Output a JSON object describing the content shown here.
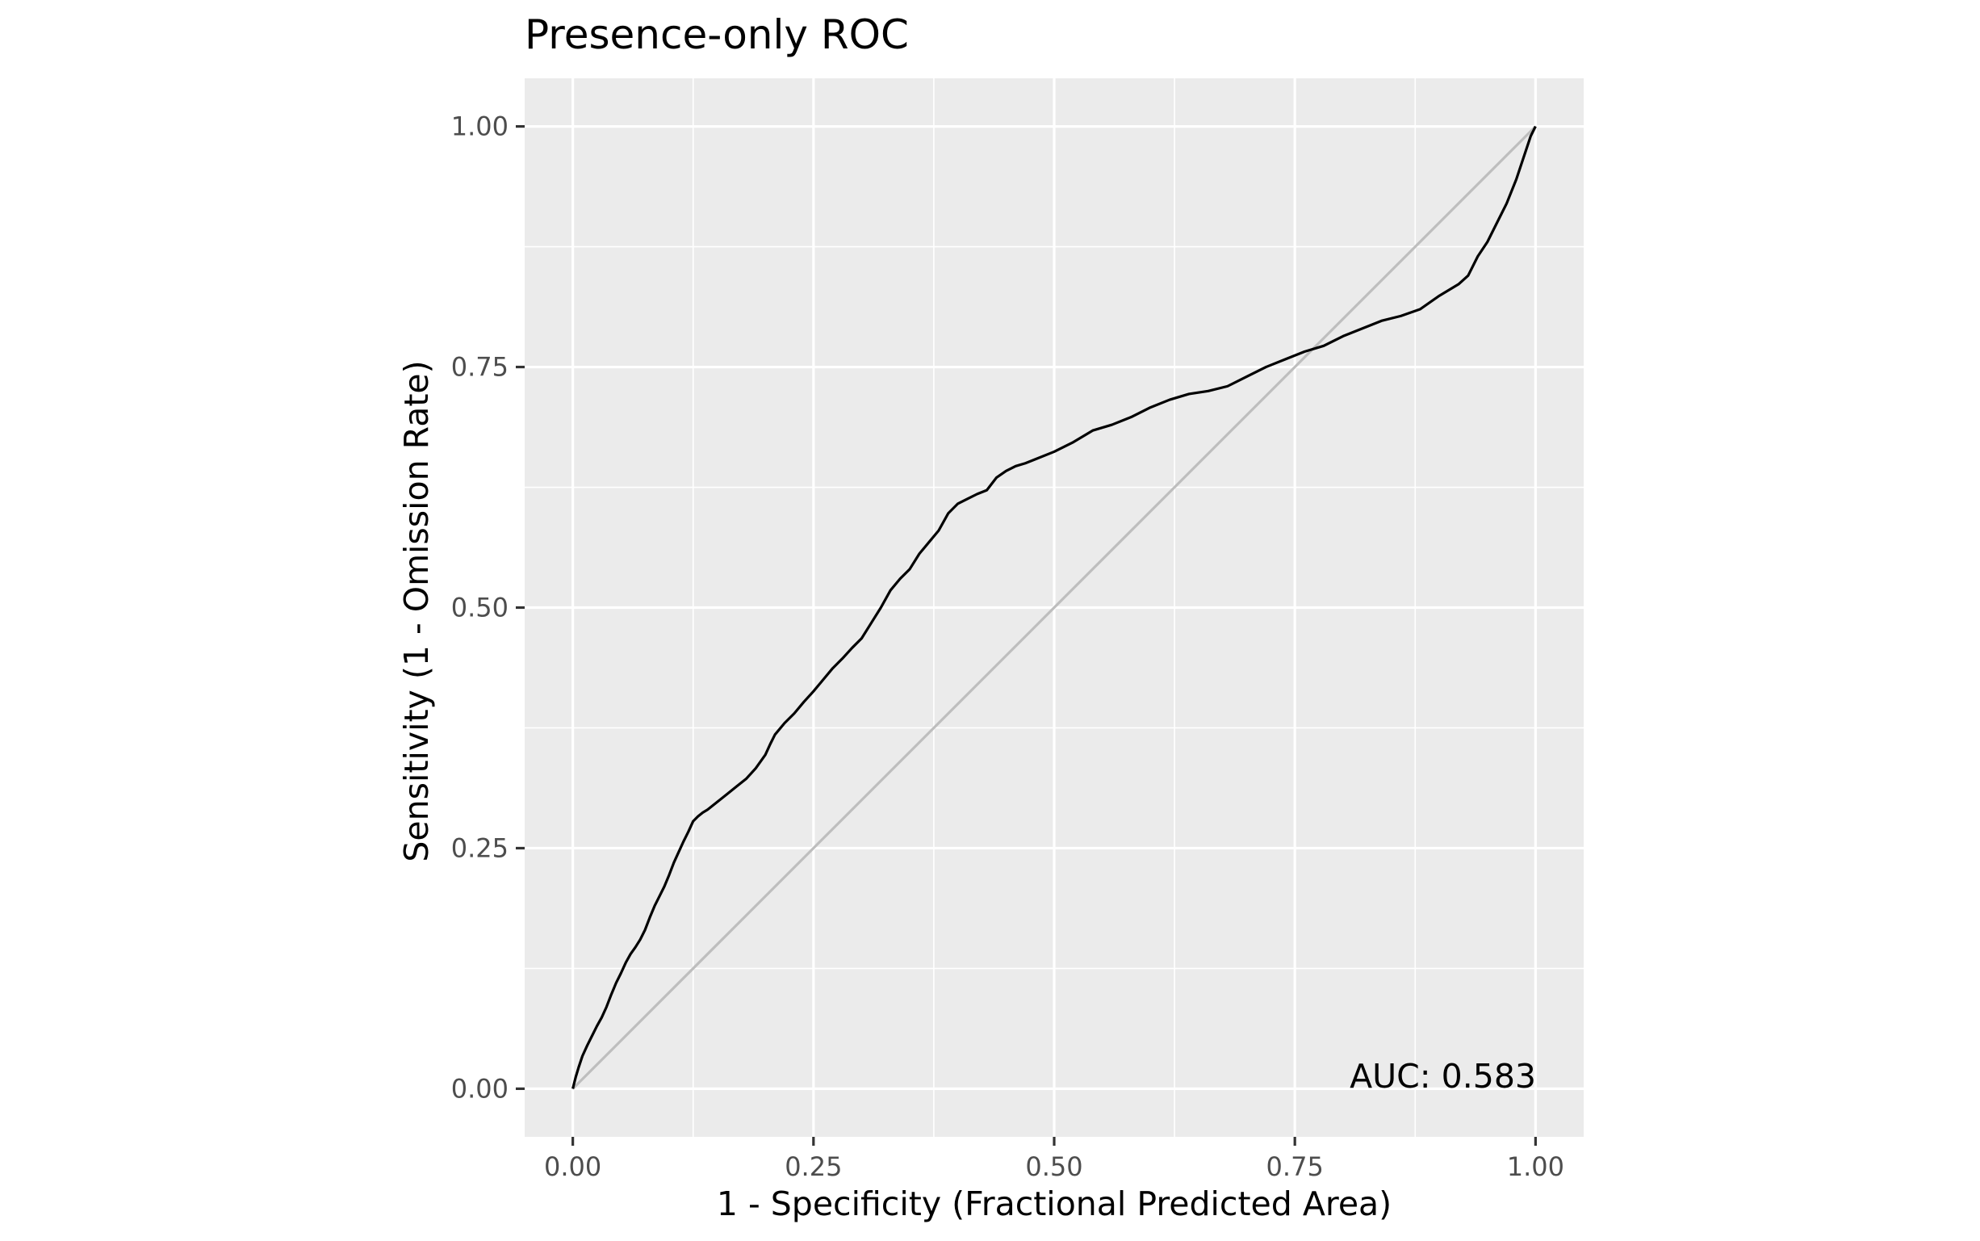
{
  "chart_data": {
    "type": "line",
    "title": "Presence-only ROC",
    "xlabel": "1 - Specificity (Fractional Predicted Area)",
    "ylabel": "Sensitivity (1 - Omission Rate)",
    "xlim": [
      -0.05,
      1.05
    ],
    "ylim": [
      -0.05,
      1.05
    ],
    "x_ticks": [
      0,
      0.25,
      0.5,
      0.75,
      1
    ],
    "x_tick_labels": [
      "0.00",
      "0.25",
      "0.50",
      "0.75",
      "1.00"
    ],
    "y_ticks": [
      0,
      0.25,
      0.5,
      0.75,
      1
    ],
    "y_tick_labels": [
      "0.00",
      "0.25",
      "0.50",
      "0.75",
      "1.00"
    ],
    "grid": true,
    "legend": "none",
    "annotation": "AUC: 0.583",
    "colors": {
      "panel_background": "#ebebeb",
      "grid_line": "#ffffff",
      "roc_curve": "#000000",
      "reference_line": "#bebebe",
      "tick_mark": "#333333"
    },
    "series": [
      {
        "id": "reference",
        "x": [
          0,
          1
        ],
        "y": [
          0,
          1
        ]
      },
      {
        "id": "roc",
        "x": [
          0,
          0.003,
          0.006,
          0.01,
          0.015,
          0.02,
          0.025,
          0.03,
          0.035,
          0.04,
          0.045,
          0.05,
          0.055,
          0.06,
          0.065,
          0.07,
          0.075,
          0.08,
          0.085,
          0.09,
          0.095,
          0.1,
          0.105,
          0.11,
          0.115,
          0.12,
          0.125,
          0.13,
          0.135,
          0.14,
          0.15,
          0.16,
          0.17,
          0.18,
          0.19,
          0.2,
          0.205,
          0.21,
          0.22,
          0.23,
          0.24,
          0.25,
          0.26,
          0.27,
          0.28,
          0.29,
          0.3,
          0.31,
          0.32,
          0.33,
          0.34,
          0.35,
          0.36,
          0.37,
          0.38,
          0.39,
          0.4,
          0.41,
          0.42,
          0.43,
          0.44,
          0.45,
          0.46,
          0.47,
          0.48,
          0.5,
          0.52,
          0.54,
          0.56,
          0.58,
          0.6,
          0.62,
          0.64,
          0.66,
          0.68,
          0.7,
          0.72,
          0.74,
          0.76,
          0.78,
          0.8,
          0.82,
          0.84,
          0.86,
          0.88,
          0.9,
          0.92,
          0.93,
          0.94,
          0.95,
          0.96,
          0.97,
          0.98,
          0.985,
          0.99,
          0.995,
          1
        ],
        "y": [
          0,
          0.012,
          0.022,
          0.034,
          0.045,
          0.055,
          0.065,
          0.074,
          0.085,
          0.098,
          0.11,
          0.12,
          0.131,
          0.14,
          0.147,
          0.155,
          0.165,
          0.178,
          0.19,
          0.2,
          0.21,
          0.222,
          0.235,
          0.246,
          0.257,
          0.267,
          0.278,
          0.283,
          0.287,
          0.29,
          0.298,
          0.306,
          0.314,
          0.322,
          0.333,
          0.347,
          0.358,
          0.368,
          0.38,
          0.39,
          0.402,
          0.413,
          0.425,
          0.437,
          0.447,
          0.458,
          0.468,
          0.484,
          0.5,
          0.518,
          0.53,
          0.54,
          0.556,
          0.568,
          0.58,
          0.598,
          0.608,
          0.613,
          0.618,
          0.622,
          0.635,
          0.642,
          0.647,
          0.65,
          0.654,
          0.662,
          0.672,
          0.684,
          0.69,
          0.698,
          0.708,
          0.716,
          0.722,
          0.725,
          0.73,
          0.74,
          0.75,
          0.758,
          0.766,
          0.772,
          0.782,
          0.79,
          0.798,
          0.803,
          0.81,
          0.824,
          0.836,
          0.845,
          0.865,
          0.88,
          0.9,
          0.92,
          0.945,
          0.96,
          0.975,
          0.99,
          1
        ]
      }
    ]
  }
}
